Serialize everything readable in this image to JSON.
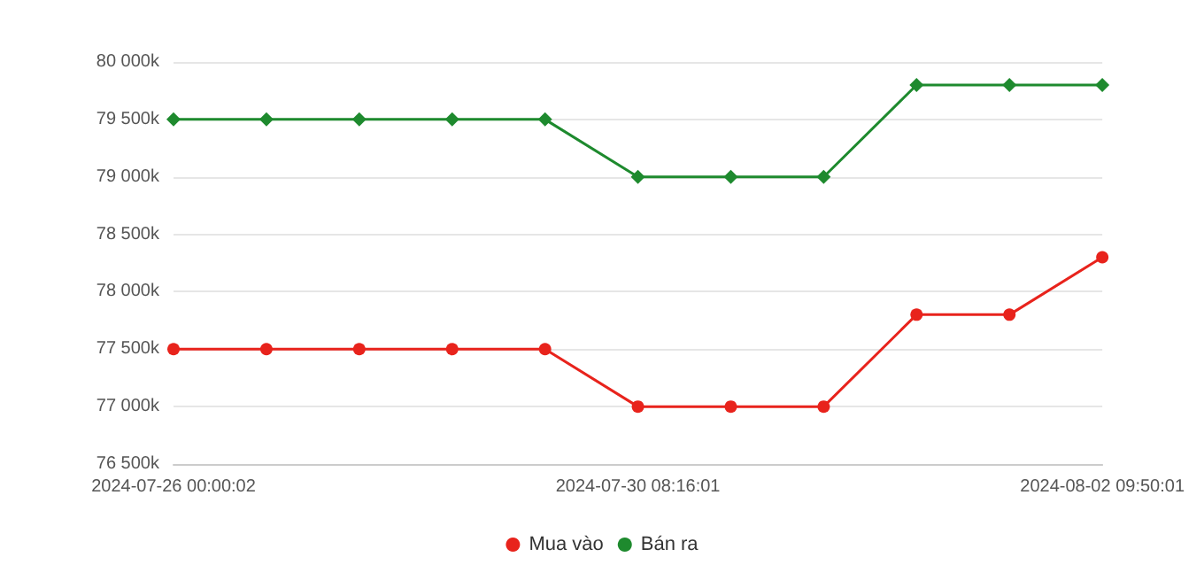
{
  "chart_data": {
    "type": "line",
    "categories": [
      "2024-07-26 00:00:02",
      null,
      null,
      null,
      null,
      "2024-07-30 08:16:01",
      null,
      null,
      null,
      null,
      "2024-08-02 09:50:01"
    ],
    "series": [
      {
        "name": "Mua vào",
        "color": "#e8231c",
        "marker": "circle",
        "values": [
          77500,
          77500,
          77500,
          77500,
          77500,
          77000,
          77000,
          77000,
          77800,
          77800,
          78300
        ]
      },
      {
        "name": "Bán ra",
        "color": "#1e8a2e",
        "marker": "diamond",
        "values": [
          79500,
          79500,
          79500,
          79500,
          79500,
          79000,
          79000,
          79000,
          79800,
          79800,
          79800
        ]
      }
    ],
    "ylim": [
      76500,
      80000
    ],
    "yticks": [
      {
        "value": 76500,
        "label": "76 500k"
      },
      {
        "value": 77000,
        "label": "77 000k"
      },
      {
        "value": 77500,
        "label": "77 500k"
      },
      {
        "value": 78000,
        "label": "78 000k"
      },
      {
        "value": 78500,
        "label": "78 500k"
      },
      {
        "value": 79000,
        "label": "79 000k"
      },
      {
        "value": 79500,
        "label": "79 500k"
      },
      {
        "value": 80000,
        "label": "80 000k"
      }
    ],
    "grid": "y",
    "legend": "bottom",
    "line_style": "solid"
  }
}
